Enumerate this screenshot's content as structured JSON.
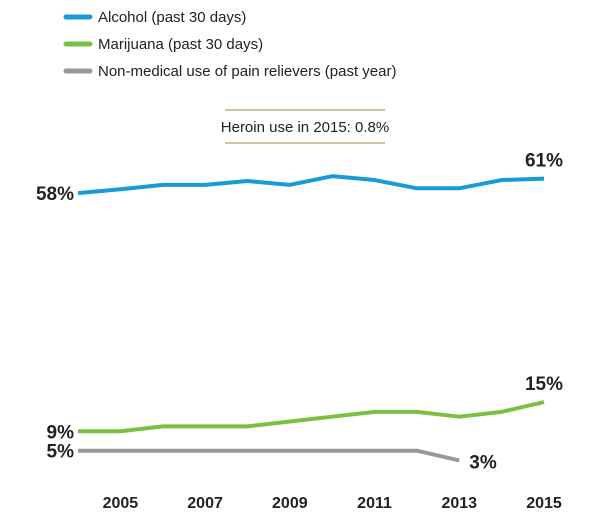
{
  "chart_data": {
    "type": "line",
    "annotation": "Heroin use in 2015: 0.8%",
    "x": [
      2004,
      2005,
      2006,
      2007,
      2008,
      2009,
      2010,
      2011,
      2012,
      2013,
      2014,
      2015
    ],
    "xlim": [
      2004,
      2015
    ],
    "xticks": [
      2005,
      2007,
      2009,
      2011,
      2013,
      2015
    ],
    "ylim": [
      0,
      64
    ],
    "legend": "top-left",
    "series": [
      {
        "name": "Alcohol (past 30 days)",
        "color": "#1a9ad6",
        "values": [
          58,
          58.8,
          59.7,
          59.7,
          60.5,
          59.7,
          61.5,
          60.7,
          59,
          59,
          60.7,
          61
        ],
        "value_labels": [
          "58%",
          null,
          null,
          null,
          null,
          null,
          null,
          null,
          null,
          null,
          null,
          "61%"
        ]
      },
      {
        "name": "Marijuana (past 30 days)",
        "color": "#7ac143",
        "values": [
          9,
          9,
          10,
          10,
          10,
          11,
          12,
          13,
          13,
          12,
          13,
          15
        ],
        "value_labels": [
          "9%",
          null,
          null,
          null,
          null,
          null,
          null,
          null,
          null,
          null,
          null,
          "15%"
        ]
      },
      {
        "name": "Non-medical use of pain relievers (past year)",
        "color": "#999999",
        "values": [
          5,
          5,
          5,
          5,
          5,
          5,
          5,
          5,
          5,
          3,
          null,
          null
        ],
        "value_labels": [
          "5%",
          null,
          null,
          null,
          null,
          null,
          null,
          null,
          null,
          "3%",
          null,
          null
        ]
      }
    ]
  }
}
